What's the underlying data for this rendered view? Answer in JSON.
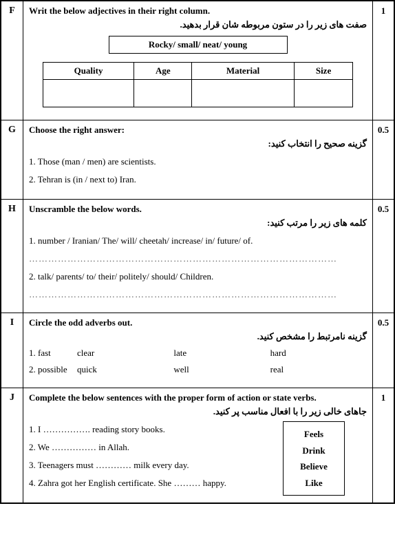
{
  "F": {
    "letter": "F",
    "score": "1",
    "prompt_en": "Writ the below adjectives in their right column.",
    "prompt_fa": "صفت های زیر را در ستون مربوطه شان قرار بدهید.",
    "wordbox": "Rocky/ small/ neat/ young",
    "headers": [
      "Quality",
      "Age",
      "Material",
      "Size"
    ]
  },
  "G": {
    "letter": "G",
    "score": "0.5",
    "prompt_en": "Choose the right answer:",
    "prompt_fa": "گزینه صحیح را انتخاب کنید:",
    "q1": "1. Those (man / men) are scientists.",
    "q2": "2. Tehran is (in / next to) Iran."
  },
  "H": {
    "letter": "H",
    "score": "0.5",
    "prompt_en": "Unscramble the below words.",
    "prompt_fa": "کلمه های زیر را مرتب کنید:",
    "q1": "1. number / Iranian/ The/ will/ cheetah/ increase/ in/ future/ of.",
    "q2": "2. talk/ parents/ to/ their/ politely/ should/ Children.",
    "dots": "……………………………………………………………………………………"
  },
  "I": {
    "letter": "I",
    "score": "0.5",
    "prompt_en": "Circle the odd adverbs out.",
    "prompt_fa": "گزینه نامرتبط را مشخص کنید.",
    "rows": [
      {
        "num": "1. fast",
        "a": "clear",
        "b": "late",
        "c": "hard"
      },
      {
        "num": "2. possible",
        "a": "quick",
        "b": "well",
        "c": "real"
      }
    ]
  },
  "J": {
    "letter": "J",
    "score": "1",
    "prompt_en": "Complete the below sentences with the proper form of action or state verbs.",
    "prompt_fa": "جاهای خالی زیر را با افعال مناسب پر کنید.",
    "q1": "1. I ……………. reading story books.",
    "q2": "2. We …………… in Allah.",
    "q3": "3. Teenagers must ………… milk every day.",
    "q4": "4. Zahra got her English certificate. She ……… happy.",
    "verbs": [
      "Feels",
      "Drink",
      "Believe",
      "Like"
    ]
  }
}
